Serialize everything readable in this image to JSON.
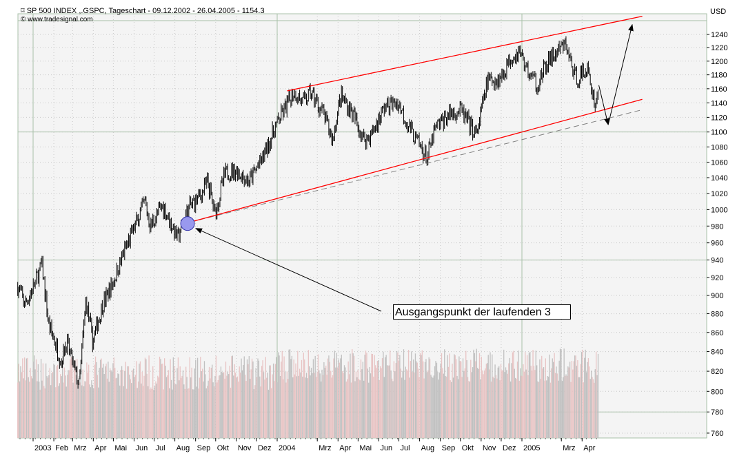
{
  "header": {
    "title": "SP 500 INDEX ,.GSPC, Tageschart - 09.12.2002 - 26.04.2005 - 1154.3",
    "copyright": "www.tradesignal.com",
    "icon": "chart-icon"
  },
  "annotation": {
    "label": "Ausgangspunkt der laufenden 3"
  },
  "colors": {
    "price": "#000000",
    "channel": "#ff0000",
    "dashed": "#808080",
    "volume_up": "#e8c4c4",
    "volume_down": "#c0c0c0",
    "circle": "#9999ee",
    "background": "#f4f4f4"
  },
  "chart_data": {
    "type": "line",
    "title": "SP 500 INDEX ,.GSPC, Tageschart",
    "ylabel": "USD",
    "yscale": "log",
    "ylim": [
      755,
      1265
    ],
    "yticks": [
      760,
      780,
      800,
      820,
      840,
      860,
      880,
      900,
      920,
      940,
      960,
      980,
      1000,
      1020,
      1040,
      1060,
      1080,
      1100,
      1120,
      1140,
      1160,
      1180,
      1200,
      1220,
      1240
    ],
    "xlim": [
      "2002-12-09",
      "2005-06-30"
    ],
    "xticks": [
      {
        "date": "2003-01-01",
        "label": "2003"
      },
      {
        "date": "2003-02-01",
        "label": "Feb"
      },
      {
        "date": "2003-03-01",
        "label": "Mrz"
      },
      {
        "date": "2003-04-01",
        "label": "Apr"
      },
      {
        "date": "2003-05-01",
        "label": "Mai"
      },
      {
        "date": "2003-06-01",
        "label": "Jun"
      },
      {
        "date": "2003-07-01",
        "label": "Jul"
      },
      {
        "date": "2003-08-01",
        "label": "Aug"
      },
      {
        "date": "2003-09-01",
        "label": "Sep"
      },
      {
        "date": "2003-10-01",
        "label": "Okt"
      },
      {
        "date": "2003-11-01",
        "label": "Nov"
      },
      {
        "date": "2003-12-01",
        "label": "Dez"
      },
      {
        "date": "2004-01-01",
        "label": "2004"
      },
      {
        "date": "2004-03-01",
        "label": "Mrz"
      },
      {
        "date": "2004-04-01",
        "label": "Apr"
      },
      {
        "date": "2004-05-01",
        "label": "Mai"
      },
      {
        "date": "2004-06-01",
        "label": "Jun"
      },
      {
        "date": "2004-07-01",
        "label": "Jul"
      },
      {
        "date": "2004-08-01",
        "label": "Aug"
      },
      {
        "date": "2004-09-01",
        "label": "Sep"
      },
      {
        "date": "2004-10-01",
        "label": "Okt"
      },
      {
        "date": "2004-11-01",
        "label": "Nov"
      },
      {
        "date": "2004-12-01",
        "label": "Dez"
      },
      {
        "date": "2005-01-01",
        "label": "2005"
      },
      {
        "date": "2005-03-01",
        "label": "Mrz"
      },
      {
        "date": "2005-04-01",
        "label": "Apr"
      }
    ],
    "price_keypoints": [
      [
        "2002-12-09",
        910
      ],
      [
        "2002-12-20",
        890
      ],
      [
        "2003-01-02",
        910
      ],
      [
        "2003-01-14",
        935
      ],
      [
        "2003-01-24",
        870
      ],
      [
        "2003-02-12",
        830
      ],
      [
        "2003-02-20",
        850
      ],
      [
        "2003-03-11",
        805
      ],
      [
        "2003-03-21",
        895
      ],
      [
        "2003-03-31",
        850
      ],
      [
        "2003-04-15",
        890
      ],
      [
        "2003-05-01",
        915
      ],
      [
        "2003-05-15",
        945
      ],
      [
        "2003-06-05",
        985
      ],
      [
        "2003-06-17",
        1010
      ],
      [
        "2003-06-25",
        980
      ],
      [
        "2003-07-14",
        1005
      ],
      [
        "2003-07-25",
        985
      ],
      [
        "2003-08-05",
        965
      ],
      [
        "2003-08-20",
        1000
      ],
      [
        "2003-09-10",
        1020
      ],
      [
        "2003-09-19",
        1035
      ],
      [
        "2003-09-30",
        995
      ],
      [
        "2003-10-15",
        1045
      ],
      [
        "2003-10-30",
        1050
      ],
      [
        "2003-11-20",
        1035
      ],
      [
        "2003-12-10",
        1065
      ],
      [
        "2003-12-31",
        1110
      ],
      [
        "2004-01-26",
        1155
      ],
      [
        "2004-02-10",
        1140
      ],
      [
        "2004-02-20",
        1155
      ],
      [
        "2004-03-10",
        1125
      ],
      [
        "2004-03-24",
        1090
      ],
      [
        "2004-04-05",
        1150
      ],
      [
        "2004-04-20",
        1130
      ],
      [
        "2004-05-10",
        1090
      ],
      [
        "2004-05-20",
        1095
      ],
      [
        "2004-06-10",
        1135
      ],
      [
        "2004-06-30",
        1140
      ],
      [
        "2004-07-20",
        1100
      ],
      [
        "2004-08-12",
        1065
      ],
      [
        "2004-08-25",
        1105
      ],
      [
        "2004-09-15",
        1125
      ],
      [
        "2004-10-01",
        1130
      ],
      [
        "2004-10-25",
        1095
      ],
      [
        "2004-11-10",
        1170
      ],
      [
        "2004-11-30",
        1175
      ],
      [
        "2004-12-15",
        1205
      ],
      [
        "2004-12-28",
        1215
      ],
      [
        "2005-01-10",
        1185
      ],
      [
        "2005-01-24",
        1165
      ],
      [
        "2005-02-10",
        1200
      ],
      [
        "2005-03-07",
        1225
      ],
      [
        "2005-03-22",
        1175
      ],
      [
        "2005-04-01",
        1180
      ],
      [
        "2005-04-08",
        1190
      ],
      [
        "2005-04-20",
        1140
      ],
      [
        "2005-04-26",
        1154
      ]
    ],
    "channel_upper": [
      [
        "2004-01-16",
        1157
      ],
      [
        "2005-06-30",
        1268
      ]
    ],
    "channel_lower": [
      [
        "2003-08-25",
        985
      ],
      [
        "2005-06-30",
        1145
      ]
    ],
    "support_dashed": [
      [
        "2003-08-25",
        985
      ],
      [
        "2005-06-28",
        1130
      ]
    ],
    "projection": [
      [
        "2005-04-26",
        1165
      ],
      [
        "2005-05-10",
        1110
      ],
      [
        "2005-06-15",
        1255
      ]
    ],
    "marker_point": [
      "2003-08-20",
      983
    ]
  }
}
